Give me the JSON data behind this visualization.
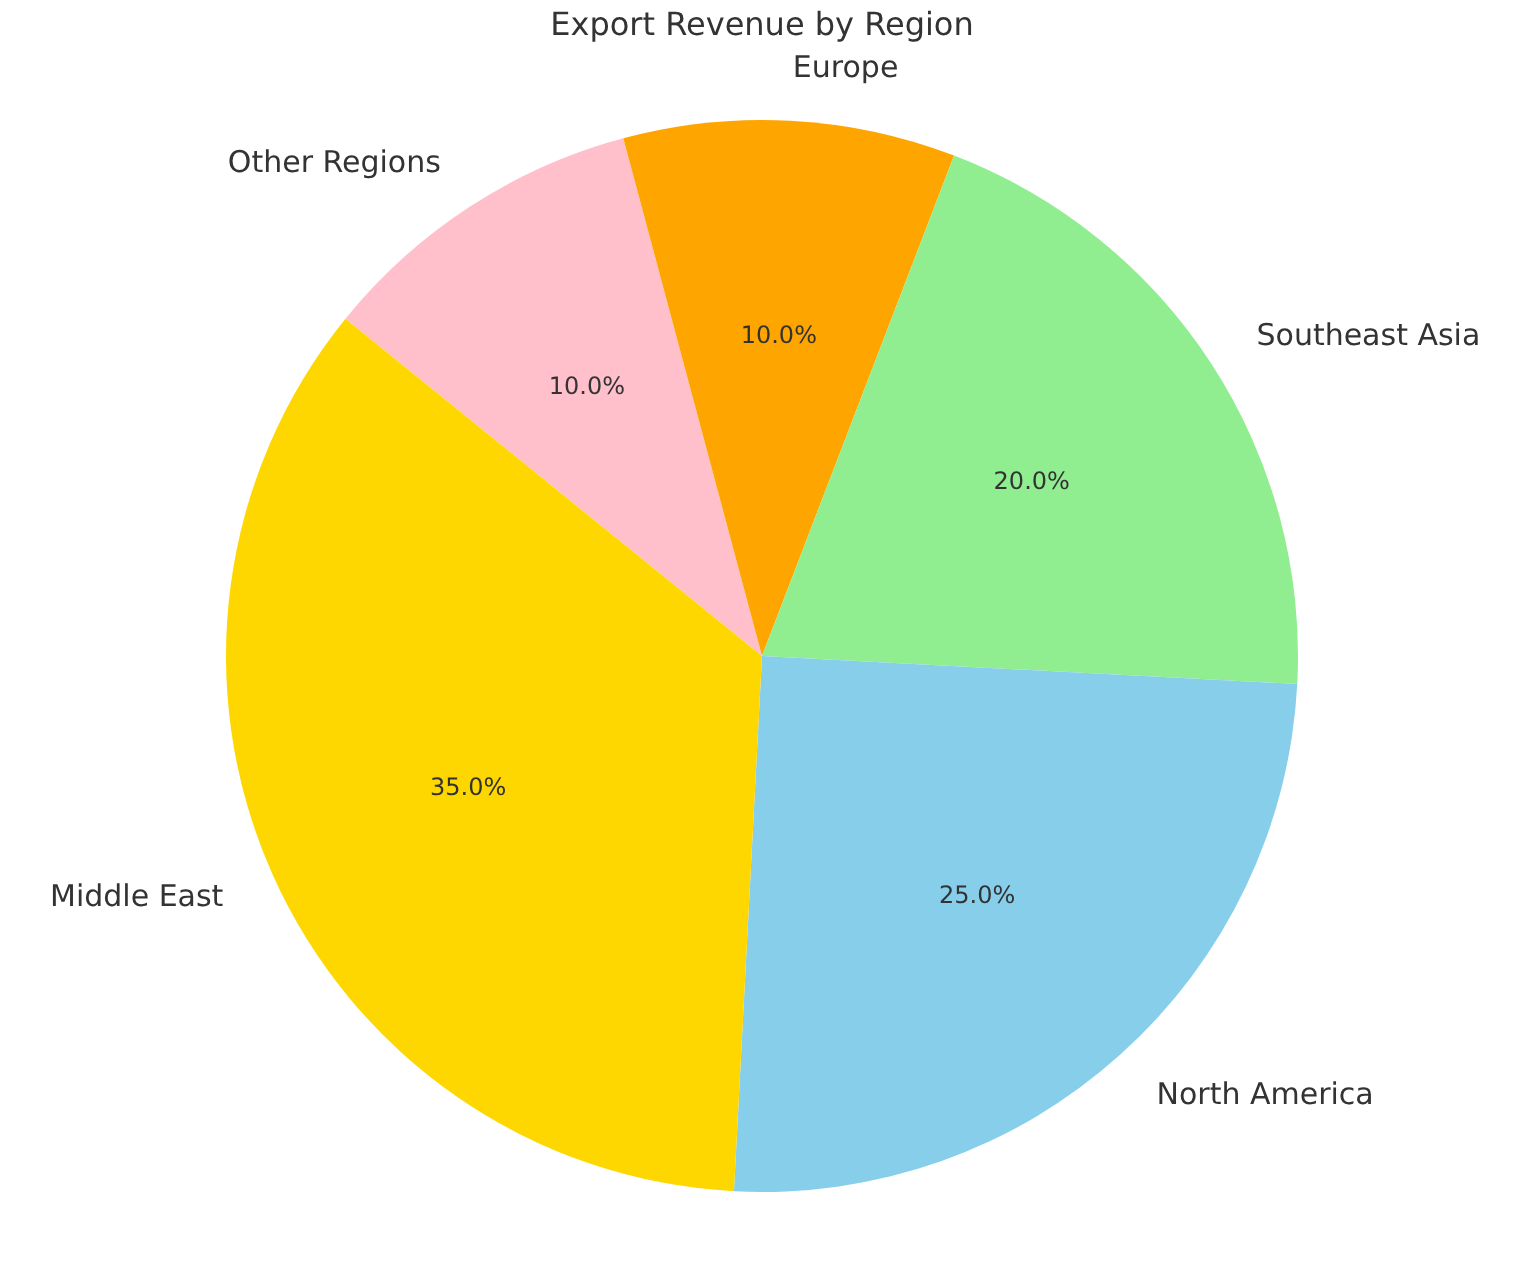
{
  "chart_data": {
    "type": "pie",
    "title": "Export Revenue by Region",
    "categories": [
      "Middle East",
      "North America",
      "Southeast Asia",
      "Europe",
      "Other Regions"
    ],
    "values": [
      35,
      25,
      20,
      10,
      10
    ],
    "colors": [
      "#ffd700",
      "#87ceeb",
      "#90ee90",
      "#ffa500",
      "#ffc0cb"
    ],
    "value_labels": [
      "35.0%",
      "25.0%",
      "20.0%",
      "10.0%",
      "10.0%"
    ]
  }
}
